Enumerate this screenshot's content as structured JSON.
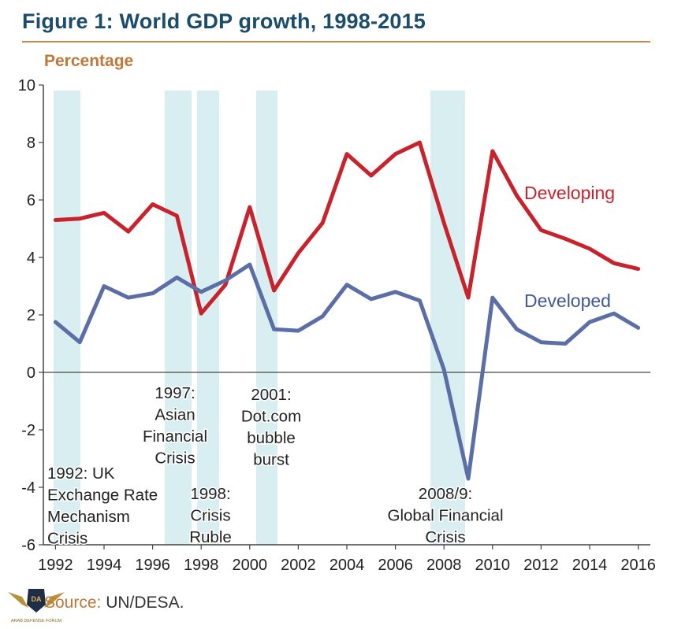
{
  "title": "Figure 1: World GDP growth, 1998-2015",
  "source_label": "Source:",
  "source_text": "UN/DESA.",
  "logo_text": "ARAB DEFENSE FORUM",
  "chart_data": {
    "type": "line",
    "title": "Figure 1: World GDP growth, 1998-2015",
    "ylabel": "Percentage",
    "xlabel": "",
    "xlim": [
      1991.5,
      2016.5
    ],
    "ylim": [
      -6,
      10
    ],
    "x_ticks": [
      1992,
      1994,
      1996,
      1998,
      2000,
      2002,
      2004,
      2006,
      2008,
      2010,
      2012,
      2014,
      2016
    ],
    "y_ticks": [
      -6,
      -4,
      -2,
      0,
      2,
      4,
      6,
      8,
      10
    ],
    "x": [
      1992,
      1993,
      1994,
      1995,
      1996,
      1997,
      1998,
      1999,
      2000,
      2001,
      2002,
      2003,
      2004,
      2005,
      2006,
      2007,
      2008,
      2009,
      2010,
      2011,
      2012,
      2013,
      2014,
      2015,
      2016
    ],
    "series": [
      {
        "name": "Developing",
        "color": "#c8232c",
        "values": [
          5.3,
          5.35,
          5.55,
          4.9,
          5.85,
          5.45,
          2.05,
          3.05,
          5.75,
          2.85,
          4.15,
          5.2,
          7.6,
          6.85,
          7.6,
          8.0,
          5.2,
          2.6,
          7.7,
          6.15,
          4.95,
          4.65,
          4.3,
          3.8,
          3.6
        ]
      },
      {
        "name": "Developed",
        "color": "#5b6ea5",
        "values": [
          1.75,
          1.05,
          3.0,
          2.6,
          2.75,
          3.3,
          2.8,
          3.2,
          3.75,
          1.5,
          1.45,
          1.95,
          3.05,
          2.55,
          2.8,
          2.5,
          0.1,
          -3.7,
          2.6,
          1.5,
          1.05,
          1.0,
          1.75,
          2.05,
          1.55
        ]
      }
    ],
    "shaded_periods": [
      {
        "start": 1992,
        "end": 1993,
        "label_lines": [
          "1992: UK",
          "Exchange Rate",
          "Mechanism",
          "Crisis"
        ]
      },
      {
        "start": 1996.5,
        "end": 1997.5,
        "label_lines": [
          "1997:",
          "Asian",
          "Financial",
          "Crisis"
        ]
      },
      {
        "start": 1997.75,
        "end": 1998.75,
        "label_lines": [
          "1998:",
          "Crisis",
          "Ruble"
        ]
      },
      {
        "start": 2000.25,
        "end": 2001.25,
        "label_lines": [
          "2001:",
          "Dot.com",
          "bubble",
          "burst"
        ]
      },
      {
        "start": 2007.75,
        "end": 2009.25,
        "label_lines": [
          "2008/9:",
          "Global Financial",
          "Crisis"
        ]
      }
    ],
    "grid": false,
    "legend": "inline labels at right"
  }
}
